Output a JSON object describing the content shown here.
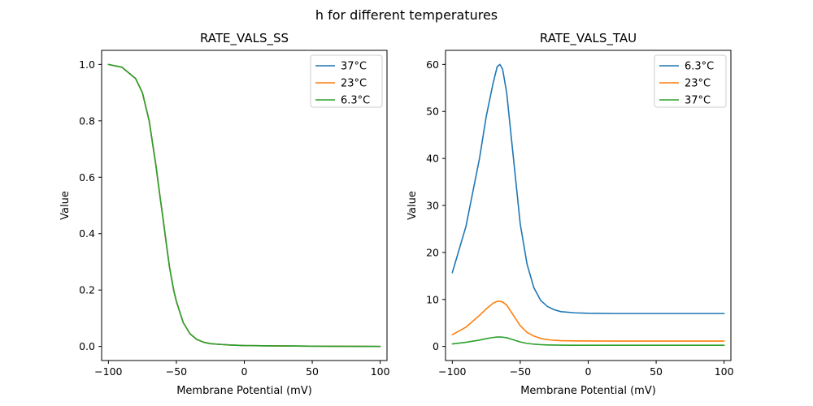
{
  "figure": {
    "title": "h for different temperatures"
  },
  "chart_data": [
    {
      "type": "line",
      "title": "RATE_VALS_SS",
      "xlabel": "Membrane Potential (mV)",
      "ylabel": "Value",
      "xlim": [
        -105,
        105
      ],
      "ylim": [
        -0.05,
        1.05
      ],
      "xticks": [
        -100,
        -50,
        0,
        50,
        100
      ],
      "yticks": [
        0.0,
        0.2,
        0.4,
        0.6,
        0.8,
        1.0
      ],
      "xtick_labels": [
        "−100",
        "−50",
        "0",
        "50",
        "100"
      ],
      "ytick_labels": [
        "0.0",
        "0.2",
        "0.4",
        "0.6",
        "0.8",
        "1.0"
      ],
      "grid": false,
      "legend": "top-right",
      "series": [
        {
          "name": "37°C",
          "color": "#1f77b4",
          "x": [
            -100,
            -90,
            -80,
            -75,
            -70,
            -65,
            -62,
            -60,
            -57,
            -55,
            -52,
            -50,
            -45,
            -40,
            -35,
            -30,
            -25,
            -20,
            -10,
            0,
            20,
            50,
            100
          ],
          "y": [
            1.0,
            0.99,
            0.95,
            0.9,
            0.8,
            0.64,
            0.53,
            0.46,
            0.35,
            0.28,
            0.2,
            0.16,
            0.085,
            0.045,
            0.025,
            0.015,
            0.01,
            0.008,
            0.005,
            0.003,
            0.002,
            0.001,
            0.0
          ]
        },
        {
          "name": "23°C",
          "color": "#ff7f0e",
          "x": [
            -100,
            -90,
            -80,
            -75,
            -70,
            -65,
            -62,
            -60,
            -57,
            -55,
            -52,
            -50,
            -45,
            -40,
            -35,
            -30,
            -25,
            -20,
            -10,
            0,
            20,
            50,
            100
          ],
          "y": [
            1.0,
            0.99,
            0.95,
            0.9,
            0.8,
            0.64,
            0.53,
            0.46,
            0.35,
            0.28,
            0.2,
            0.16,
            0.085,
            0.045,
            0.025,
            0.015,
            0.01,
            0.008,
            0.005,
            0.003,
            0.002,
            0.001,
            0.0
          ]
        },
        {
          "name": "6.3°C",
          "color": "#2ca02c",
          "x": [
            -100,
            -90,
            -80,
            -75,
            -70,
            -65,
            -62,
            -60,
            -57,
            -55,
            -52,
            -50,
            -45,
            -40,
            -35,
            -30,
            -25,
            -20,
            -10,
            0,
            20,
            50,
            100
          ],
          "y": [
            1.0,
            0.99,
            0.95,
            0.9,
            0.8,
            0.64,
            0.53,
            0.46,
            0.35,
            0.28,
            0.2,
            0.16,
            0.085,
            0.045,
            0.025,
            0.015,
            0.01,
            0.008,
            0.005,
            0.003,
            0.002,
            0.001,
            0.0
          ]
        }
      ]
    },
    {
      "type": "line",
      "title": "RATE_VALS_TAU",
      "xlabel": "Membrane Potential (mV)",
      "ylabel": "Value",
      "xlim": [
        -105,
        105
      ],
      "ylim": [
        -3,
        63
      ],
      "xticks": [
        -100,
        -50,
        0,
        50,
        100
      ],
      "yticks": [
        0,
        10,
        20,
        30,
        40,
        50,
        60
      ],
      "xtick_labels": [
        "−100",
        "−50",
        "0",
        "50",
        "100"
      ],
      "ytick_labels": [
        "0",
        "10",
        "20",
        "30",
        "40",
        "50",
        "60"
      ],
      "grid": false,
      "legend": "top-right",
      "series": [
        {
          "name": "6.3°C",
          "color": "#1f77b4",
          "x": [
            -100,
            -90,
            -80,
            -75,
            -70,
            -67,
            -65,
            -63,
            -60,
            -55,
            -50,
            -45,
            -40,
            -35,
            -30,
            -25,
            -20,
            -10,
            0,
            20,
            50,
            100
          ],
          "y": [
            15.7,
            25.5,
            40.0,
            49.0,
            56.0,
            59.5,
            60.0,
            59.0,
            54.0,
            40.0,
            26.0,
            17.5,
            12.5,
            9.8,
            8.5,
            7.8,
            7.4,
            7.15,
            7.05,
            7.0,
            7.0,
            7.0
          ]
        },
        {
          "name": "23°C",
          "color": "#ff7f0e",
          "x": [
            -100,
            -90,
            -80,
            -75,
            -70,
            -67,
            -65,
            -63,
            -60,
            -55,
            -50,
            -45,
            -40,
            -35,
            -30,
            -25,
            -20,
            -10,
            0,
            20,
            50,
            100
          ],
          "y": [
            2.5,
            4.1,
            6.6,
            8.0,
            9.2,
            9.6,
            9.6,
            9.45,
            8.8,
            6.6,
            4.4,
            3.0,
            2.2,
            1.7,
            1.45,
            1.3,
            1.22,
            1.17,
            1.15,
            1.14,
            1.14,
            1.14
          ]
        },
        {
          "name": "37°C",
          "color": "#2ca02c",
          "x": [
            -100,
            -90,
            -80,
            -75,
            -70,
            -67,
            -65,
            -63,
            -60,
            -55,
            -50,
            -45,
            -40,
            -35,
            -30,
            -25,
            -20,
            -10,
            0,
            20,
            50,
            100
          ],
          "y": [
            0.53,
            0.87,
            1.35,
            1.65,
            1.9,
            2.0,
            2.0,
            1.97,
            1.85,
            1.4,
            0.95,
            0.65,
            0.48,
            0.38,
            0.32,
            0.29,
            0.27,
            0.255,
            0.25,
            0.25,
            0.25,
            0.25
          ]
        }
      ]
    }
  ]
}
